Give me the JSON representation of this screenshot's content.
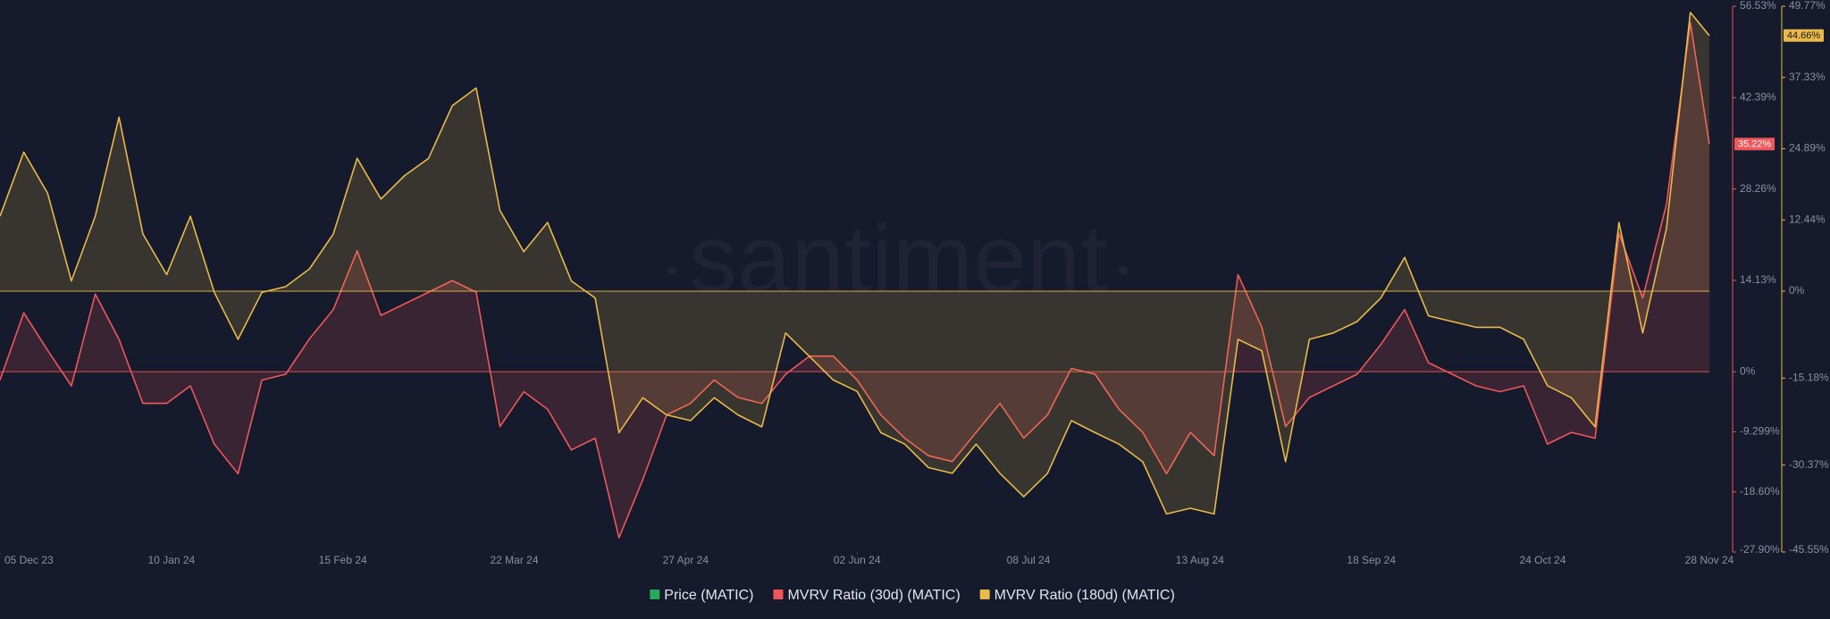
{
  "chart_data": {
    "type": "line",
    "watermark": "santiment",
    "x": [
      "2023-12-05",
      "2023-12-10",
      "2023-12-15",
      "2023-12-20",
      "2023-12-25",
      "2023-12-30",
      "2024-01-04",
      "2024-01-09",
      "2024-01-14",
      "2024-01-19",
      "2024-01-24",
      "2024-01-29",
      "2024-02-03",
      "2024-02-08",
      "2024-02-13",
      "2024-02-18",
      "2024-02-23",
      "2024-02-28",
      "2024-03-04",
      "2024-03-09",
      "2024-03-14",
      "2024-03-19",
      "2024-03-24",
      "2024-03-29",
      "2024-04-03",
      "2024-04-08",
      "2024-04-13",
      "2024-04-18",
      "2024-04-23",
      "2024-04-28",
      "2024-05-03",
      "2024-05-08",
      "2024-05-13",
      "2024-05-18",
      "2024-05-23",
      "2024-05-28",
      "2024-06-02",
      "2024-06-07",
      "2024-06-12",
      "2024-06-17",
      "2024-06-22",
      "2024-06-27",
      "2024-07-02",
      "2024-07-07",
      "2024-07-12",
      "2024-07-17",
      "2024-07-22",
      "2024-07-27",
      "2024-08-01",
      "2024-08-06",
      "2024-08-11",
      "2024-08-16",
      "2024-08-21",
      "2024-08-26",
      "2024-08-31",
      "2024-09-05",
      "2024-09-10",
      "2024-09-15",
      "2024-09-20",
      "2024-09-25",
      "2024-09-30",
      "2024-10-05",
      "2024-10-10",
      "2024-10-15",
      "2024-10-20",
      "2024-10-25",
      "2024-10-30",
      "2024-11-04",
      "2024-11-09",
      "2024-11-14",
      "2024-11-19",
      "2024-11-24",
      "2024-11-28"
    ],
    "xlim": [
      "2023-12-05",
      "2024-11-28"
    ],
    "xticks": [
      {
        "value": "2023-12-05",
        "label": "05 Dec 23"
      },
      {
        "value": "2024-01-10",
        "label": "10 Jan 24"
      },
      {
        "value": "2024-02-15",
        "label": "15 Feb 24"
      },
      {
        "value": "2024-03-22",
        "label": "22 Mar 24"
      },
      {
        "value": "2024-04-27",
        "label": "27 Apr 24"
      },
      {
        "value": "2024-06-02",
        "label": "02 Jun 24"
      },
      {
        "value": "2024-07-08",
        "label": "08 Jul 24"
      },
      {
        "value": "2024-08-13",
        "label": "13 Aug 24"
      },
      {
        "value": "2024-09-18",
        "label": "18 Sep 24"
      },
      {
        "value": "2024-10-24",
        "label": "24 Oct 24"
      },
      {
        "value": "2024-11-28",
        "label": "28 Nov 24"
      }
    ],
    "ylim": [
      -27.9,
      56.53
    ],
    "yticks": [
      {
        "value": 56.53,
        "label": "56.53%"
      },
      {
        "value": 42.39,
        "label": "42.39%"
      },
      {
        "value": 28.26,
        "label": "28.26%"
      },
      {
        "value": 14.13,
        "label": "14.13%"
      },
      {
        "value": 0,
        "label": "0%"
      },
      {
        "value": -9.299,
        "label": "-9.299%"
      },
      {
        "value": -18.6,
        "label": "-18.60%"
      },
      {
        "value": -27.9,
        "label": "-27.90%"
      }
    ],
    "y2lim": [
      -45.55,
      49.77
    ],
    "y2ticks": [
      {
        "value": 49.77,
        "label": "49.77%"
      },
      {
        "value": 37.33,
        "label": "37.33%"
      },
      {
        "value": 24.89,
        "label": "24.89%"
      },
      {
        "value": 12.44,
        "label": "12.44%"
      },
      {
        "value": 0,
        "label": "0%"
      },
      {
        "value": -15.18,
        "label": "-15.18%"
      },
      {
        "value": -30.37,
        "label": "-30.37%"
      },
      {
        "value": -45.55,
        "label": "-45.55%"
      }
    ],
    "series": [
      {
        "name": "Price (MATIC)",
        "color": "#26a95a"
      },
      {
        "name": "MVRV Ratio (30d) (MATIC)",
        "color": "#f0575a",
        "current_label": "35.22%",
        "values": [
          -1.3,
          9.1,
          3.3,
          -2.2,
          12,
          5,
          -4.9,
          -4.9,
          -2.2,
          -11.2,
          -15.8,
          -1.3,
          -0.4,
          5.1,
          9.6,
          18.7,
          8.7,
          10.5,
          12.3,
          14.1,
          12.3,
          -8.5,
          -3.1,
          -5.8,
          -12.1,
          -10.3,
          -25.7,
          -16.7,
          -6.7,
          -4.9,
          -1.3,
          -4.0,
          -4.9,
          -0.4,
          2.4,
          2.4,
          -1.3,
          -6.7,
          -10.3,
          -13.0,
          -13.9,
          -9.4,
          -4.9,
          -10.3,
          -6.7,
          0.5,
          -0.4,
          -5.8,
          -9.4,
          -15.8,
          -9.4,
          -13.0,
          15.0,
          6.9,
          -8.5,
          -4.0,
          -2.2,
          -0.4,
          4.2,
          9.6,
          1.4,
          -0.4,
          -2.2,
          -3.1,
          -2.2,
          -11.2,
          -9.4,
          -10.3,
          21.4,
          11.4,
          25.9,
          54.0,
          35.22
        ]
      },
      {
        "name": "MVRV Ratio (180d) (MATIC)",
        "color": "#e9b949",
        "axis": "y2",
        "current_label": "44.66%",
        "values": [
          13.1,
          24.3,
          17.1,
          1.8,
          13.1,
          30.4,
          10.0,
          2.9,
          13.1,
          -0.2,
          -8.4,
          -0.2,
          0.8,
          3.9,
          10.0,
          23.2,
          16.1,
          20.2,
          23.2,
          32.4,
          35.5,
          14.1,
          6.9,
          12.0,
          1.8,
          -1.2,
          -24.7,
          -18.6,
          -21.6,
          -22.6,
          -18.6,
          -21.6,
          -23.7,
          -7.3,
          -11.4,
          -15.5,
          -17.5,
          -24.7,
          -26.7,
          -30.8,
          -31.8,
          -26.7,
          -31.8,
          -35.9,
          -31.8,
          -22.6,
          -24.7,
          -26.7,
          -29.8,
          -38.9,
          -37.9,
          -38.9,
          -8.4,
          -10.4,
          -29.8,
          -8.4,
          -7.3,
          -5.3,
          -1.2,
          5.9,
          -4.3,
          -5.3,
          -6.3,
          -6.3,
          -8.4,
          -16.5,
          -18.6,
          -23.7,
          12.0,
          -7.3,
          11.0,
          48.7,
          44.66
        ]
      }
    ]
  }
}
